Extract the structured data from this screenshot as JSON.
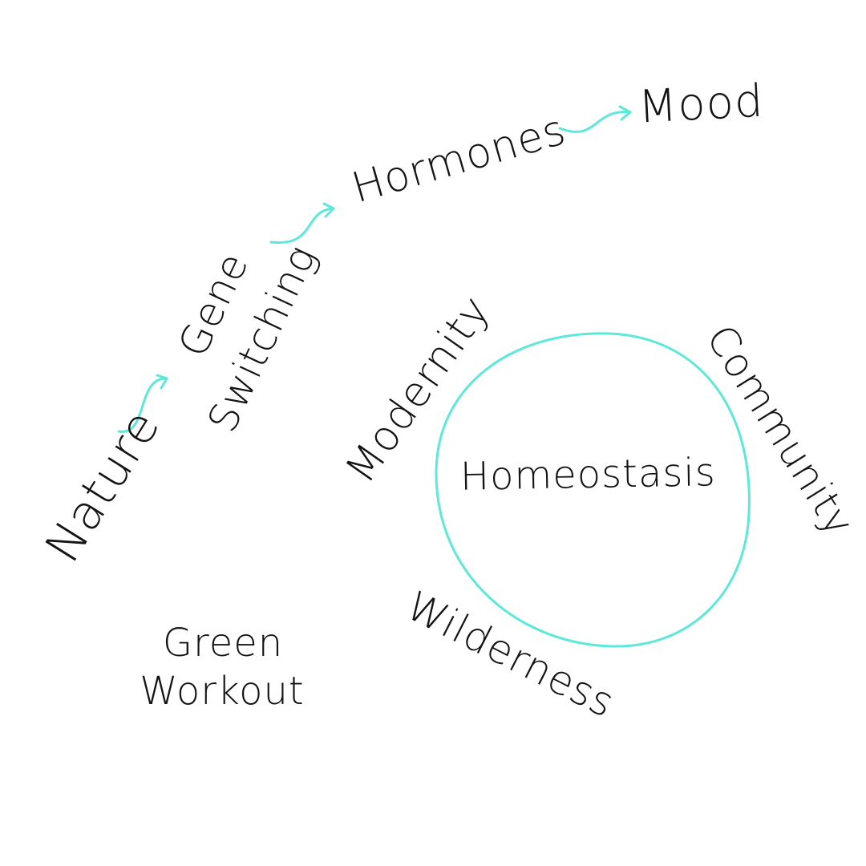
{
  "diagram": {
    "accent_color": "#5ee8d9",
    "text_color": "#141414",
    "chain": {
      "nature": "Nature",
      "gene": "Gene",
      "switching": "Switching",
      "hormones": "Hormones",
      "mood": "Mood"
    },
    "cycle": {
      "center": "Homeostasis",
      "modernity": "Modernity",
      "community": "Community",
      "wilderness": "Wilderness"
    },
    "green_workout": {
      "line1": "Green",
      "line2": "Workout"
    }
  }
}
